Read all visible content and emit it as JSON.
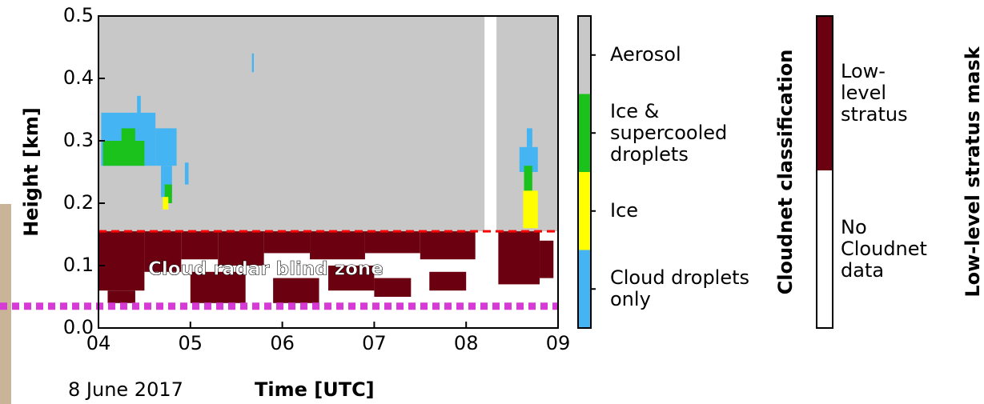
{
  "chart_data": {
    "type": "heatmap",
    "y_label": "Height [km]",
    "x_label": "Time [UTC]",
    "date": "8 June 2017",
    "annotation": "Cloud radar blind zone",
    "xlim": [
      4,
      9
    ],
    "xticks": [
      {
        "value": 4,
        "label": "04"
      },
      {
        "value": 5,
        "label": "05"
      },
      {
        "value": 6,
        "label": "06"
      },
      {
        "value": 7,
        "label": "07"
      },
      {
        "value": 8,
        "label": "08"
      },
      {
        "value": 9,
        "label": "09"
      }
    ],
    "ylim": [
      0,
      0.5
    ],
    "yticks": [
      {
        "value": 0,
        "label": "0.0"
      },
      0.1,
      0.2,
      0.3,
      0.4,
      0.5
    ],
    "blind_zone_top": 0.155,
    "blind_zone_color": "#ff0000",
    "reference_height": 0.035,
    "reference_color": "#d63bd6",
    "classification_title": "Cloudnet classification",
    "classes": [
      {
        "name": "Aerosol",
        "color": "#c8c8c8"
      },
      {
        "name": "Ice & supercooled droplets",
        "color": "#1cc21c"
      },
      {
        "name": "Ice",
        "color": "#ffff00"
      },
      {
        "name": "Cloud droplets only",
        "color": "#44b4f2"
      }
    ],
    "aerosol_gaps": [
      [
        8.2,
        8.33
      ]
    ],
    "patches": [
      {
        "class": 3,
        "x": [
          4.03,
          4.62
        ],
        "y": [
          0.26,
          0.345
        ]
      },
      {
        "class": 3,
        "x": [
          4.62,
          4.85
        ],
        "y": [
          0.26,
          0.32
        ]
      },
      {
        "class": 3,
        "x": [
          4.42,
          4.46
        ],
        "y": [
          0.34,
          0.372
        ]
      },
      {
        "class": 3,
        "x": [
          4.94,
          4.98
        ],
        "y": [
          0.23,
          0.265
        ]
      },
      {
        "class": 3,
        "x": [
          5.67,
          5.69
        ],
        "y": [
          0.41,
          0.44
        ]
      },
      {
        "class": 3,
        "x": [
          4.68,
          4.8
        ],
        "y": [
          0.21,
          0.26
        ]
      },
      {
        "class": 3,
        "x": [
          8.58,
          8.78
        ],
        "y": [
          0.25,
          0.29
        ]
      },
      {
        "class": 3,
        "x": [
          8.66,
          8.72
        ],
        "y": [
          0.29,
          0.32
        ]
      },
      {
        "class": 1,
        "x": [
          4.05,
          4.5
        ],
        "y": [
          0.26,
          0.3
        ]
      },
      {
        "class": 1,
        "x": [
          4.25,
          4.4
        ],
        "y": [
          0.3,
          0.32
        ]
      },
      {
        "class": 1,
        "x": [
          4.72,
          4.8
        ],
        "y": [
          0.2,
          0.23
        ]
      },
      {
        "class": 1,
        "x": [
          8.63,
          8.72
        ],
        "y": [
          0.22,
          0.26
        ]
      },
      {
        "class": 2,
        "x": [
          4.7,
          4.76
        ],
        "y": [
          0.19,
          0.21
        ]
      },
      {
        "class": 2,
        "x": [
          8.62,
          8.78
        ],
        "y": [
          0.16,
          0.22
        ]
      }
    ],
    "stratus": [
      [
        4.0,
        4.5,
        0.06,
        0.155
      ],
      [
        4.5,
        4.9,
        0.09,
        0.155
      ],
      [
        4.9,
        5.3,
        0.11,
        0.155
      ],
      [
        5.0,
        5.6,
        0.04,
        0.09
      ],
      [
        5.3,
        5.8,
        0.1,
        0.155
      ],
      [
        5.8,
        6.3,
        0.12,
        0.155
      ],
      [
        5.9,
        6.4,
        0.04,
        0.08
      ],
      [
        6.3,
        6.9,
        0.11,
        0.155
      ],
      [
        6.5,
        7.0,
        0.06,
        0.1
      ],
      [
        6.9,
        7.5,
        0.12,
        0.155
      ],
      [
        7.0,
        7.4,
        0.05,
        0.08
      ],
      [
        7.5,
        8.1,
        0.11,
        0.155
      ],
      [
        7.6,
        8.0,
        0.06,
        0.09
      ],
      [
        8.35,
        8.8,
        0.07,
        0.155
      ],
      [
        8.8,
        8.95,
        0.08,
        0.14
      ],
      [
        4.1,
        4.4,
        0.04,
        0.06
      ]
    ],
    "stratus_color": "#6b0010",
    "mask_title": "Low-level stratus mask",
    "mask_levels": [
      {
        "name": "Low-level stratus",
        "color": "#6b0010"
      },
      {
        "name": "No Cloudnet data",
        "color": "#ffffff"
      }
    ]
  }
}
